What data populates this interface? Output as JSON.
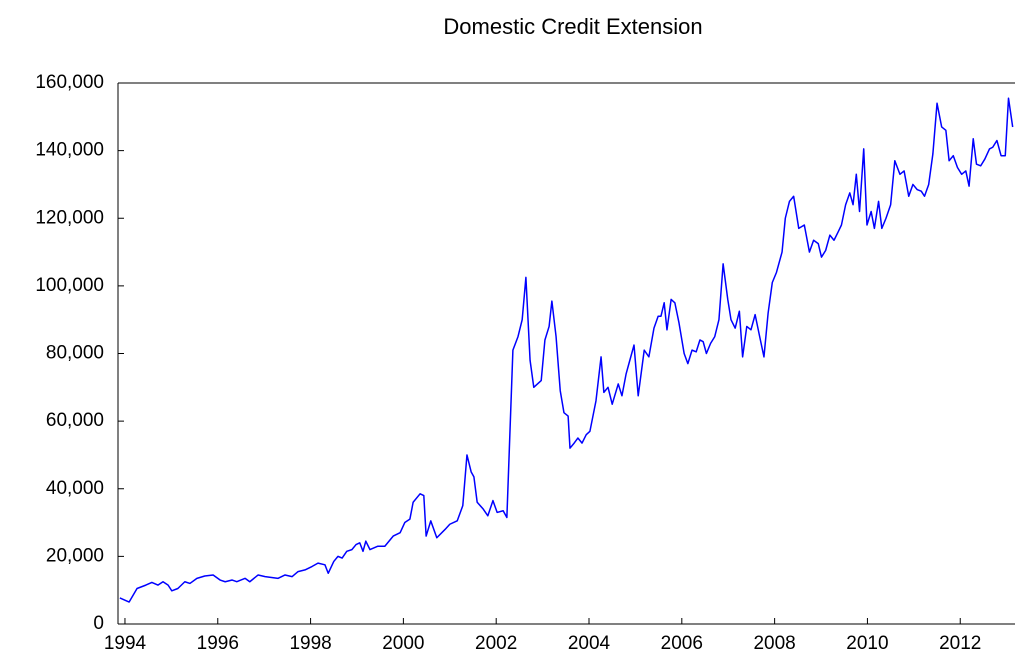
{
  "chart_data": {
    "type": "line",
    "title": "Domestic Credit Extension",
    "color": "#0000ff",
    "x": [
      1993.89,
      1994.09,
      1994.26,
      1994.45,
      1994.58,
      1994.71,
      1994.82,
      1994.93,
      1995.01,
      1995.14,
      1995.29,
      1995.4,
      1995.55,
      1995.72,
      1995.9,
      1996.05,
      1996.16,
      1996.31,
      1996.41,
      1996.59,
      1996.69,
      1996.87,
      1997.02,
      1997.3,
      1997.45,
      1997.6,
      1997.73,
      1997.88,
      1998.03,
      1998.16,
      1998.31,
      1998.38,
      1998.5,
      1998.59,
      1998.68,
      1998.78,
      1998.89,
      1998.98,
      1999.06,
      1999.13,
      1999.19,
      1999.28,
      1999.45,
      1999.6,
      1999.78,
      1999.93,
      2000.03,
      2000.14,
      2000.21,
      2000.36,
      2000.44,
      2000.49,
      2000.59,
      2000.72,
      2000.9,
      2001.0,
      2001.16,
      2001.28,
      2001.37,
      2001.46,
      2001.52,
      2001.59,
      2001.72,
      2001.82,
      2001.93,
      2002.02,
      2002.15,
      2002.23,
      2002.36,
      2002.47,
      2002.56,
      2002.64,
      2002.73,
      2002.81,
      2002.97,
      2003.05,
      2003.14,
      2003.2,
      2003.29,
      2003.38,
      2003.46,
      2003.55,
      2003.59,
      2003.68,
      2003.76,
      2003.85,
      2003.94,
      2004.02,
      2004.15,
      2004.26,
      2004.32,
      2004.41,
      2004.5,
      2004.63,
      2004.71,
      2004.8,
      2004.88,
      2004.97,
      2005.06,
      2005.19,
      2005.29,
      2005.4,
      2005.49,
      2005.55,
      2005.62,
      2005.68,
      2005.77,
      2005.85,
      2005.94,
      2006.05,
      2006.13,
      2006.22,
      2006.31,
      2006.39,
      2006.46,
      2006.53,
      2006.62,
      2006.71,
      2006.8,
      2006.89,
      2006.99,
      2007.06,
      2007.15,
      2007.24,
      2007.31,
      2007.4,
      2007.49,
      2007.58,
      2007.67,
      2007.77,
      2007.86,
      2007.95,
      2008.04,
      2008.16,
      2008.23,
      2008.32,
      2008.41,
      2008.52,
      2008.64,
      2008.75,
      2008.84,
      2008.94,
      2009.01,
      2009.1,
      2009.19,
      2009.28,
      2009.37,
      2009.44,
      2009.53,
      2009.62,
      2009.69,
      2009.76,
      2009.83,
      2009.92,
      2009.99,
      2010.08,
      2010.15,
      2010.24,
      2010.31,
      2010.4,
      2010.5,
      2010.59,
      2010.7,
      2010.79,
      2010.89,
      2010.98,
      2011.07,
      2011.16,
      2011.23,
      2011.32,
      2011.41,
      2011.5,
      2011.6,
      2011.69,
      2011.76,
      2011.85,
      2011.94,
      2012.03,
      2012.12,
      2012.19,
      2012.28,
      2012.35,
      2012.44,
      2012.53,
      2012.63,
      2012.7,
      2012.79,
      2012.88,
      2012.97,
      2013.04,
      2013.13
    ],
    "values": [
      7700,
      6500,
      10500,
      11500,
      12300,
      11500,
      12500,
      11500,
      9800,
      10500,
      12500,
      12000,
      13500,
      14200,
      14500,
      13000,
      12500,
      13000,
      12500,
      13500,
      12500,
      14500,
      14000,
      13500,
      14500,
      14000,
      15500,
      16000,
      17000,
      18000,
      17500,
      15000,
      18500,
      20000,
      19500,
      21500,
      22000,
      23500,
      24000,
      21500,
      24500,
      22000,
      23000,
      23000,
      26000,
      27000,
      30000,
      31000,
      36000,
      38500,
      38000,
      26000,
      30500,
      25500,
      28000,
      29500,
      30500,
      35000,
      50000,
      45000,
      43500,
      36000,
      34000,
      32000,
      36500,
      33000,
      33500,
      31500,
      81000,
      85000,
      90000,
      102500,
      78000,
      70000,
      72000,
      84000,
      88000,
      95500,
      85000,
      69000,
      62500,
      61500,
      52000,
      53500,
      55000,
      53500,
      56000,
      57000,
      66000,
      79000,
      68500,
      70000,
      65000,
      71000,
      67500,
      74000,
      78000,
      82500,
      67500,
      81000,
      79000,
      87500,
      91000,
      91000,
      95000,
      87000,
      96000,
      95000,
      89000,
      80000,
      77000,
      81000,
      80500,
      84000,
      83500,
      80000,
      83000,
      85000,
      90000,
      106500,
      96000,
      90000,
      87500,
      92500,
      79000,
      88000,
      87000,
      91500,
      85500,
      79000,
      92000,
      101000,
      104000,
      110000,
      120000,
      125000,
      126500,
      117000,
      118000,
      110000,
      113500,
      112500,
      108500,
      110500,
      115000,
      113500,
      116000,
      118000,
      124000,
      127500,
      124000,
      133000,
      122000,
      140500,
      118000,
      122000,
      117000,
      125000,
      117000,
      120000,
      124000,
      137000,
      133000,
      134000,
      126500,
      130000,
      128500,
      128000,
      126500,
      130000,
      139000,
      154000,
      147000,
      146000,
      137000,
      138500,
      135000,
      133000,
      134000,
      129500,
      143500,
      136000,
      135500,
      137500,
      140500,
      141000,
      143000,
      138500,
      138500,
      155500,
      147000
    ],
    "xlim": [
      1993.85,
      2013.18
    ],
    "xticks": [
      1994,
      1996,
      1998,
      2000,
      2002,
      2004,
      2006,
      2008,
      2010,
      2012
    ],
    "ylim": [
      0,
      160000
    ],
    "yticks": [
      0,
      {
        "value": 20000,
        "label": "20,000"
      },
      {
        "value": 40000,
        "label": "40,000"
      },
      {
        "value": 60000,
        "label": "60,000"
      },
      {
        "value": 80000,
        "label": "80,000"
      },
      {
        "value": 100000,
        "label": "100,000"
      },
      {
        "value": 120000,
        "label": "120,000"
      },
      {
        "value": 140000,
        "label": "140,000"
      },
      {
        "value": 160000,
        "label": "160,000"
      }
    ]
  }
}
